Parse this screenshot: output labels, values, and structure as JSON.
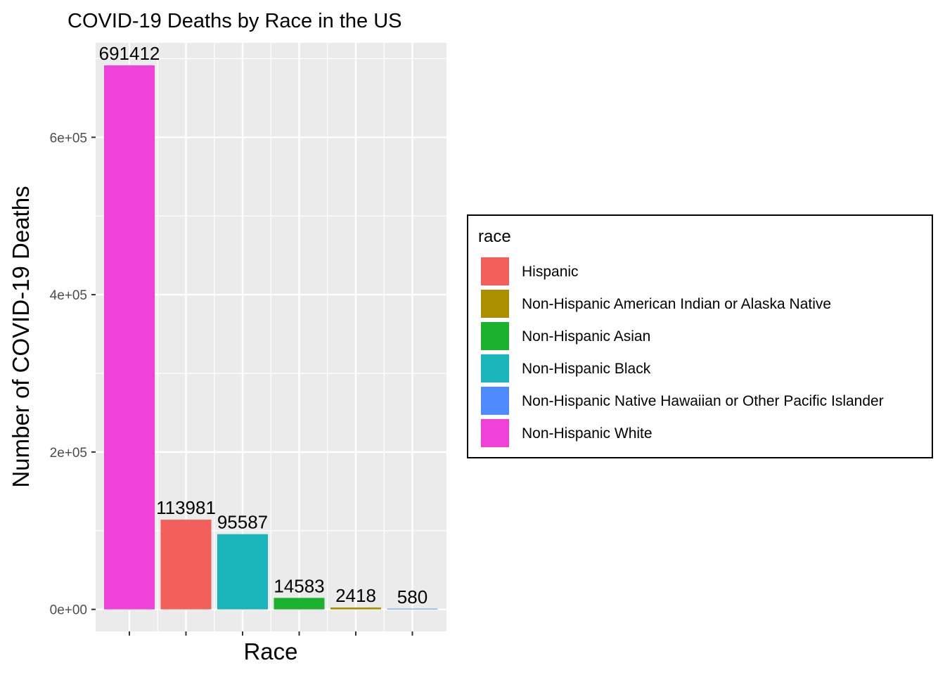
{
  "chart_data": {
    "type": "bar",
    "title": "COVID-19 Deaths by Race in the US",
    "xlabel": "Race",
    "ylabel": "Number of COVID-19 Deaths",
    "ylim": [
      -28000,
      720000
    ],
    "yticks": [
      0,
      200000,
      400000,
      600000
    ],
    "ytick_labels": [
      "0e+00",
      "2e+05",
      "4e+05",
      "6e+05"
    ],
    "grid": true,
    "legend": "right",
    "bars": [
      {
        "category": "Non-Hispanic White",
        "value": 691412,
        "label": "691412",
        "color": "#F042DB"
      },
      {
        "category": "Hispanic",
        "value": 113981,
        "label": "113981",
        "color": "#F35F5A"
      },
      {
        "category": "Non-Hispanic Black",
        "value": 95587,
        "label": "95587",
        "color": "#19B5BB"
      },
      {
        "category": "Non-Hispanic Asian",
        "value": 14583,
        "label": "14583",
        "color": "#1BB32E"
      },
      {
        "category": "Non-Hispanic American Indian or Alaska Native",
        "value": 2418,
        "label": "2418",
        "color": "#AA8F00"
      },
      {
        "category": "Non-Hispanic Native Hawaiian or Other Pacific Islander",
        "value": 580,
        "label": "580",
        "color": "#4F8BFF"
      }
    ]
  },
  "legend": {
    "title": "race",
    "items": [
      {
        "label": "Hispanic",
        "color": "#F35F5A"
      },
      {
        "label": "Non-Hispanic American Indian or Alaska Native",
        "color": "#AA8F00"
      },
      {
        "label": "Non-Hispanic Asian",
        "color": "#1BB32E"
      },
      {
        "label": "Non-Hispanic Black",
        "color": "#19B5BB"
      },
      {
        "label": "Non-Hispanic Native Hawaiian or Other Pacific Islander",
        "color": "#4F8BFF"
      },
      {
        "label": "Non-Hispanic White",
        "color": "#F042DB"
      }
    ]
  }
}
